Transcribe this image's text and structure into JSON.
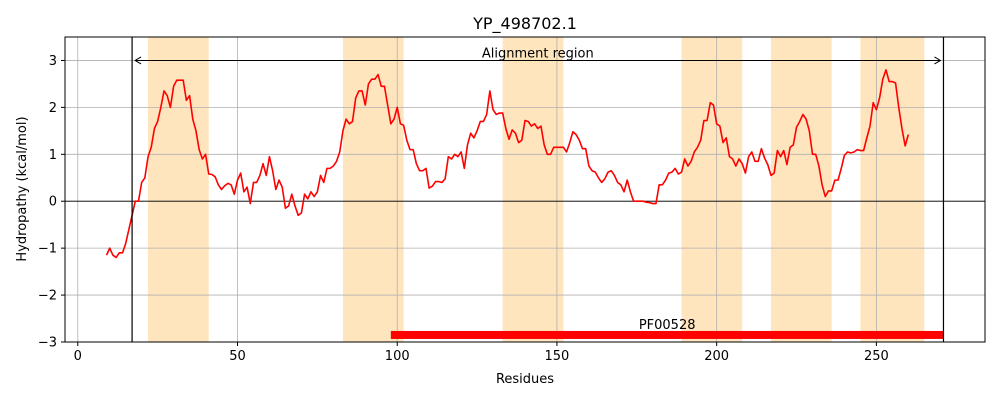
{
  "chart_data": {
    "type": "line",
    "title": "YP_498702.1",
    "xlabel": "Residues",
    "ylabel": "Hydropathy (kcal/mol)",
    "xlim": [
      -4,
      284
    ],
    "ylim": [
      -3,
      3.5
    ],
    "xticks": [
      0,
      50,
      100,
      150,
      200,
      250
    ],
    "yticks": [
      -3,
      -2,
      -1,
      0,
      1,
      2,
      3
    ],
    "ytick_labels": [
      "−3",
      "−2",
      "−1",
      "0",
      "1",
      "2",
      "3"
    ],
    "grid": true,
    "line_color": "#ff0000",
    "highlight_color": "#ffe5bd",
    "highlight_regions": [
      [
        22,
        41
      ],
      [
        83,
        102
      ],
      [
        133,
        152
      ],
      [
        189,
        208
      ],
      [
        217,
        236
      ],
      [
        245,
        265
      ]
    ],
    "alignment_region": {
      "label": "Alignment region",
      "start": 17,
      "end": 271,
      "y": 3.0
    },
    "domain_bar": {
      "label": "PF00528",
      "start": 98,
      "end": 271,
      "y": -2.85,
      "color": "#ff0000"
    },
    "series": [
      {
        "x": [
          9,
          10,
          11,
          12,
          13,
          14,
          15,
          16,
          17,
          18,
          19,
          20,
          21,
          22,
          23,
          24,
          25,
          26,
          27,
          28,
          29,
          30,
          31,
          32,
          33,
          34,
          35,
          36,
          37,
          38,
          39,
          40,
          41,
          42,
          43,
          44,
          45,
          46,
          47,
          48,
          49,
          50,
          51,
          52,
          53,
          54,
          55,
          56,
          57,
          58,
          59,
          60,
          61,
          62,
          63,
          64,
          65,
          66,
          67,
          68,
          69,
          70,
          71,
          72,
          73,
          74,
          75,
          76,
          77,
          78,
          79,
          80,
          81,
          82,
          83,
          84,
          85,
          86,
          87,
          88,
          89,
          90,
          91,
          92,
          93,
          94,
          95,
          96,
          97,
          98,
          99,
          100,
          101,
          102,
          103,
          104,
          105,
          106,
          107,
          108,
          109,
          110,
          111,
          112,
          113,
          114,
          115,
          116,
          117,
          118,
          119,
          120,
          121,
          122,
          123,
          124,
          125,
          126,
          127,
          128,
          129,
          130,
          131,
          132,
          133,
          134,
          135,
          136,
          137,
          138,
          139,
          140,
          141,
          142,
          143,
          144,
          145,
          146,
          147,
          148,
          149,
          150,
          151,
          152,
          153,
          154,
          155,
          156,
          157,
          158,
          159,
          160,
          161,
          162,
          163,
          164,
          165,
          166,
          167,
          168,
          169,
          170,
          171,
          172,
          173,
          174,
          175,
          176,
          177,
          178,
          179,
          180,
          181,
          182,
          183,
          184,
          185,
          186,
          187,
          188,
          189,
          190,
          191,
          192,
          193,
          194,
          195,
          196,
          197,
          198,
          199,
          200,
          201,
          202,
          203,
          204,
          205,
          206,
          207,
          208,
          209,
          210,
          211,
          212,
          213,
          214,
          215,
          216,
          217,
          218,
          219,
          220,
          221,
          222,
          223,
          224,
          225,
          226,
          227,
          228,
          229,
          230,
          231,
          232,
          233,
          234,
          235,
          236,
          237,
          238,
          239,
          240,
          241,
          242,
          243,
          244,
          245,
          246,
          247,
          248,
          249,
          250,
          251,
          252,
          253,
          254,
          255,
          256,
          257,
          258,
          259,
          260
        ],
        "values": [
          -1.15,
          -1.0,
          -1.15,
          -1.2,
          -1.1,
          -1.1,
          -0.9,
          -0.6,
          -0.3,
          0.0,
          0.0,
          0.4,
          0.5,
          0.95,
          1.15,
          1.55,
          1.7,
          2.0,
          2.35,
          2.25,
          2.0,
          2.45,
          2.58,
          2.58,
          2.58,
          2.15,
          2.25,
          1.75,
          1.5,
          1.1,
          0.9,
          1.0,
          0.58,
          0.57,
          0.52,
          0.35,
          0.25,
          0.33,
          0.38,
          0.35,
          0.15,
          0.45,
          0.6,
          0.2,
          0.3,
          -0.05,
          0.4,
          0.4,
          0.55,
          0.8,
          0.55,
          0.95,
          0.65,
          0.25,
          0.45,
          0.3,
          -0.15,
          -0.1,
          0.15,
          -0.1,
          -0.3,
          -0.25,
          0.15,
          0.05,
          0.2,
          0.1,
          0.2,
          0.55,
          0.4,
          0.7,
          0.7,
          0.75,
          0.85,
          1.05,
          1.5,
          1.75,
          1.65,
          1.7,
          2.2,
          2.35,
          2.35,
          2.05,
          2.5,
          2.6,
          2.6,
          2.7,
          2.45,
          2.45,
          2.05,
          1.65,
          1.75,
          2.0,
          1.65,
          1.62,
          1.3,
          1.1,
          1.1,
          0.8,
          0.65,
          0.65,
          0.7,
          0.28,
          0.32,
          0.42,
          0.42,
          0.4,
          0.48,
          0.95,
          0.9,
          1.0,
          0.95,
          1.05,
          0.7,
          1.2,
          1.45,
          1.35,
          1.5,
          1.7,
          1.7,
          1.85,
          2.35,
          1.95,
          1.85,
          1.88,
          1.88,
          1.55,
          1.32,
          1.52,
          1.45,
          1.25,
          1.3,
          1.72,
          1.7,
          1.6,
          1.65,
          1.55,
          1.6,
          1.2,
          1.0,
          1.0,
          1.15,
          1.15,
          1.15,
          1.15,
          1.05,
          1.25,
          1.48,
          1.42,
          1.3,
          1.12,
          1.12,
          0.75,
          0.65,
          0.62,
          0.5,
          0.4,
          0.48,
          0.62,
          0.65,
          0.55,
          0.4,
          0.35,
          0.2,
          0.45,
          0.2,
          0.0,
          0.0,
          0.0,
          0.0,
          -0.02,
          -0.03,
          -0.05,
          -0.05,
          0.35,
          0.35,
          0.45,
          0.6,
          0.62,
          0.7,
          0.58,
          0.62,
          0.9,
          0.75,
          0.85,
          1.05,
          1.15,
          1.3,
          1.72,
          1.72,
          2.1,
          2.05,
          1.65,
          1.6,
          1.25,
          1.35,
          0.95,
          0.9,
          0.75,
          0.9,
          0.8,
          0.6,
          0.95,
          1.05,
          0.85,
          0.85,
          1.12,
          0.92,
          0.78,
          0.55,
          0.6,
          1.08,
          0.95,
          1.08,
          0.78,
          1.15,
          1.2,
          1.58,
          1.7,
          1.85,
          1.75,
          1.5,
          1.0,
          1.0,
          0.75,
          0.35,
          0.1,
          0.22,
          0.22,
          0.45,
          0.45,
          0.7,
          0.98,
          1.05,
          1.03,
          1.05,
          1.1,
          1.08,
          1.08,
          1.35,
          1.6,
          2.1,
          1.95,
          2.2,
          2.6,
          2.8,
          2.55,
          2.55,
          2.52,
          2.0,
          1.55,
          1.18,
          1.42
        ]
      }
    ]
  }
}
